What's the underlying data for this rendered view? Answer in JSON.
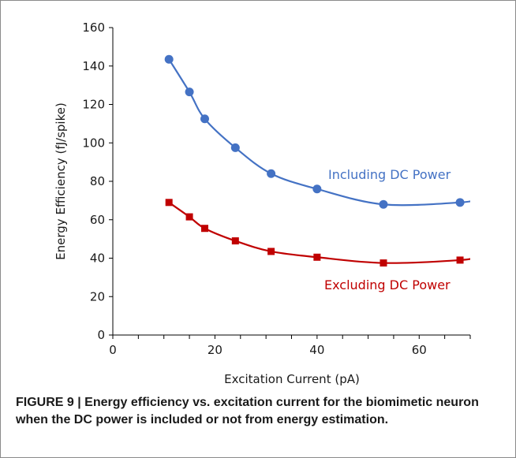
{
  "chart_data": {
    "type": "line",
    "xlabel": "Excitation Current (pA)",
    "ylabel": "Energy Efficiency (fJ/spike)",
    "xlim": [
      0,
      70
    ],
    "ylim": [
      0,
      160
    ],
    "x_ticks": [
      0,
      20,
      40,
      60
    ],
    "y_ticks": [
      0,
      20,
      40,
      60,
      80,
      100,
      120,
      140,
      160
    ],
    "grid": false,
    "legend": "inline labels",
    "series": [
      {
        "name": "Including DC Power",
        "color": "#4472c4",
        "marker": "circle",
        "x": [
          11,
          15,
          18,
          24,
          31,
          40,
          53,
          68,
          72
        ],
        "y": [
          143.5,
          126.5,
          112.5,
          97.5,
          84,
          76,
          68,
          69,
          71
        ]
      },
      {
        "name": "Excluding DC Power",
        "color": "#c00000",
        "marker": "square",
        "x": [
          11,
          15,
          18,
          24,
          31,
          40,
          53,
          68,
          72
        ],
        "y": [
          69,
          61.5,
          55.5,
          49,
          43.5,
          40.5,
          37.5,
          39,
          41
        ]
      }
    ]
  },
  "caption": "FIGURE 9 | Energy efficiency vs. excitation current for the biomimetic neuron when the DC power is included or not from energy estimation."
}
